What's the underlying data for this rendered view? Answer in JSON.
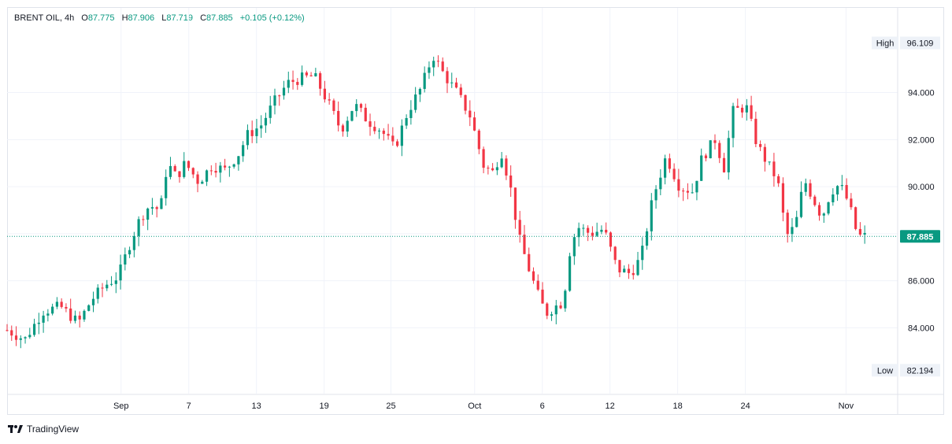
{
  "header": {
    "symbol": "BRENT OIL, 4h",
    "open_label": "O",
    "open": "87.775",
    "high_label": "H",
    "high": "87.906",
    "low_label": "L",
    "low": "87.719",
    "close_label": "C",
    "close": "87.885",
    "change": "+0.105 (+0.12%)"
  },
  "footer": {
    "brand": "TradingView"
  },
  "colors": {
    "up": "#089981",
    "down": "#f23645",
    "grid": "#f0f3fa",
    "price_line": "#089981"
  },
  "chart_data": {
    "type": "candlestick",
    "ylim": [
      81.2,
      97.6
    ],
    "y_ticks": [
      {
        "value": 84,
        "label": "84.000"
      },
      {
        "value": 86,
        "label": "86.000"
      },
      {
        "value": 88,
        "label": "88.000"
      },
      {
        "value": 90,
        "label": "90.000"
      },
      {
        "value": 92,
        "label": "92.000"
      },
      {
        "value": 94,
        "label": "94.000"
      }
    ],
    "x_ticks": [
      {
        "pos": 0.128,
        "label": "Sep"
      },
      {
        "pos": 0.204,
        "label": "7"
      },
      {
        "pos": 0.28,
        "label": "13"
      },
      {
        "pos": 0.356,
        "label": "19"
      },
      {
        "pos": 0.431,
        "label": "25"
      },
      {
        "pos": 0.525,
        "label": "Oct"
      },
      {
        "pos": 0.601,
        "label": "6"
      },
      {
        "pos": 0.677,
        "label": "12"
      },
      {
        "pos": 0.753,
        "label": "18"
      },
      {
        "pos": 0.829,
        "label": "24"
      },
      {
        "pos": 0.942,
        "label": "Nov"
      }
    ],
    "high_marker": {
      "label": "High",
      "value": "96.109"
    },
    "low_marker": {
      "label": "Low",
      "value": "82.194"
    },
    "last_price": {
      "value": 87.885,
      "label": "87.885"
    },
    "series_close_path": [
      [
        0.0,
        83.9
      ],
      [
        0.02,
        83.5
      ],
      [
        0.04,
        84.7
      ],
      [
        0.06,
        84.9
      ],
      [
        0.08,
        84.2
      ],
      [
        0.095,
        85.2
      ],
      [
        0.11,
        85.8
      ],
      [
        0.125,
        86.2
      ],
      [
        0.14,
        87.8
      ],
      [
        0.15,
        88.7
      ],
      [
        0.16,
        89.2
      ],
      [
        0.172,
        89.0
      ],
      [
        0.18,
        91.0
      ],
      [
        0.19,
        90.4
      ],
      [
        0.2,
        91.0
      ],
      [
        0.215,
        90.2
      ],
      [
        0.23,
        90.9
      ],
      [
        0.245,
        90.7
      ],
      [
        0.26,
        91.4
      ],
      [
        0.27,
        92.2
      ],
      [
        0.285,
        92.6
      ],
      [
        0.3,
        93.6
      ],
      [
        0.315,
        94.4
      ],
      [
        0.33,
        94.6
      ],
      [
        0.345,
        94.7
      ],
      [
        0.36,
        93.6
      ],
      [
        0.375,
        92.4
      ],
      [
        0.39,
        93.5
      ],
      [
        0.405,
        92.8
      ],
      [
        0.42,
        92.4
      ],
      [
        0.435,
        91.6
      ],
      [
        0.45,
        93.2
      ],
      [
        0.465,
        94.2
      ],
      [
        0.478,
        95.6
      ],
      [
        0.49,
        94.8
      ],
      [
        0.505,
        94.0
      ],
      [
        0.52,
        93.0
      ],
      [
        0.535,
        90.9
      ],
      [
        0.545,
        90.6
      ],
      [
        0.555,
        91.5
      ],
      [
        0.565,
        90.0
      ],
      [
        0.575,
        87.8
      ],
      [
        0.585,
        86.6
      ],
      [
        0.595,
        85.5
      ],
      [
        0.605,
        84.6
      ],
      [
        0.615,
        84.9
      ],
      [
        0.625,
        85.1
      ],
      [
        0.63,
        87.0
      ],
      [
        0.64,
        88.3
      ],
      [
        0.655,
        88.0
      ],
      [
        0.67,
        88.2
      ],
      [
        0.685,
        86.5
      ],
      [
        0.7,
        86.3
      ],
      [
        0.712,
        87.0
      ],
      [
        0.725,
        89.5
      ],
      [
        0.74,
        91.3
      ],
      [
        0.755,
        90.0
      ],
      [
        0.77,
        89.8
      ],
      [
        0.78,
        91.2
      ],
      [
        0.795,
        92.0
      ],
      [
        0.805,
        90.8
      ],
      [
        0.815,
        93.2
      ],
      [
        0.83,
        93.4
      ],
      [
        0.842,
        91.8
      ],
      [
        0.855,
        90.9
      ],
      [
        0.865,
        90.3
      ],
      [
        0.875,
        87.9
      ],
      [
        0.885,
        88.3
      ],
      [
        0.895,
        90.3
      ],
      [
        0.905,
        89.5
      ],
      [
        0.915,
        88.7
      ],
      [
        0.925,
        89.8
      ],
      [
        0.935,
        90.1
      ],
      [
        0.945,
        89.3
      ],
      [
        0.955,
        87.9
      ],
      [
        0.963,
        87.885
      ]
    ]
  }
}
